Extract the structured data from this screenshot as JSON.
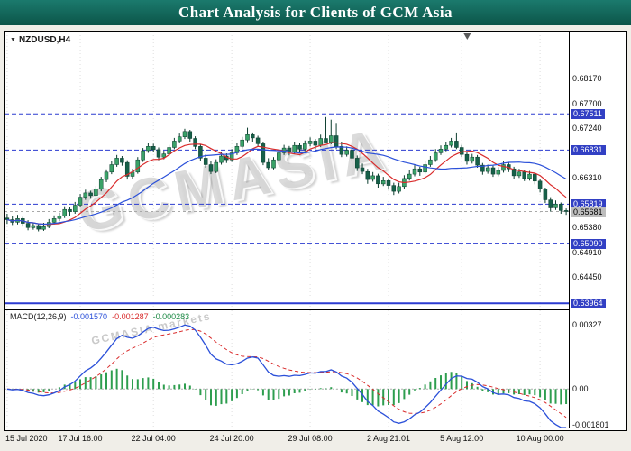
{
  "window": {
    "title": "Chart Analysis for Clients of GCM Asia"
  },
  "chart": {
    "symbol_label": "NZDUSD,H4",
    "watermark_main": "GCMASIA",
    "watermark_sub": "GCMASIA markets"
  },
  "macd_panel": {
    "label": "MACD(12,26,9)",
    "macd_value": "-0.001570",
    "signal_value": "-0.001287",
    "hist_value": "-0.000283"
  },
  "chart_data": {
    "type": "candlestick",
    "symbol": "NZDUSD",
    "timeframe": "H4",
    "title": "Chart Analysis for Clients of GCM Asia",
    "current_price": 0.65681,
    "shift_marker": 0.82,
    "price_axis": {
      "max": 0.6905,
      "min": 0.6385,
      "labels": [
        {
          "v": 0.6817,
          "text": "0.68170",
          "style": "plain"
        },
        {
          "v": 0.677,
          "text": "0.67700",
          "style": "plain"
        },
        {
          "v": 0.67511,
          "text": "0.67511",
          "style": "badge"
        },
        {
          "v": 0.6724,
          "text": "0.67240",
          "style": "plain"
        },
        {
          "v": 0.66831,
          "text": "0.66831",
          "style": "badge"
        },
        {
          "v": 0.6631,
          "text": "0.66310",
          "style": "plain"
        },
        {
          "v": 0.65819,
          "text": "0.65819",
          "style": "badge"
        },
        {
          "v": 0.6538,
          "text": "0.65380",
          "style": "plain"
        },
        {
          "v": 0.6509,
          "text": "0.65090",
          "style": "badge"
        },
        {
          "v": 0.6491,
          "text": "0.64910",
          "style": "plain"
        },
        {
          "v": 0.6445,
          "text": "0.64450",
          "style": "plain"
        },
        {
          "v": 0.63964,
          "text": "0.63964",
          "style": "badge"
        },
        {
          "v": 0.65681,
          "text": "0.65681",
          "style": "current"
        }
      ]
    },
    "levels": [
      {
        "v": 0.67511,
        "style": "dashed"
      },
      {
        "v": 0.66831,
        "style": "dashed"
      },
      {
        "v": 0.65819,
        "style": "dashed"
      },
      {
        "v": 0.6509,
        "style": "dashed"
      },
      {
        "v": 0.63964,
        "style": "solid"
      }
    ],
    "time_labels": [
      {
        "i": 0,
        "text": "15 Jul 2020"
      },
      {
        "i": 14,
        "text": "17 Jul 16:00"
      },
      {
        "i": 28,
        "text": "22 Jul 04:00"
      },
      {
        "i": 43,
        "text": "24 Jul 20:00"
      },
      {
        "i": 58,
        "text": "29 Jul 08:00"
      },
      {
        "i": 73,
        "text": "2 Aug 21:01"
      },
      {
        "i": 87,
        "text": "5 Aug 12:00"
      },
      {
        "i": 102,
        "text": "10 Aug 00:00"
      }
    ],
    "candles_ohlc": [
      [
        0.6556,
        0.6564,
        0.6545,
        0.6553
      ],
      [
        0.6553,
        0.656,
        0.6543,
        0.6548
      ],
      [
        0.6548,
        0.6562,
        0.6544,
        0.6555
      ],
      [
        0.6555,
        0.6558,
        0.654,
        0.6546
      ],
      [
        0.6546,
        0.6552,
        0.6533,
        0.6538
      ],
      [
        0.6538,
        0.6548,
        0.6534,
        0.6542
      ],
      [
        0.6542,
        0.6545,
        0.6531,
        0.6535
      ],
      [
        0.6535,
        0.6547,
        0.6532,
        0.654
      ],
      [
        0.654,
        0.6554,
        0.6537,
        0.6548
      ],
      [
        0.6548,
        0.6561,
        0.6544,
        0.6555
      ],
      [
        0.6555,
        0.6566,
        0.655,
        0.656
      ],
      [
        0.656,
        0.6578,
        0.6556,
        0.6572
      ],
      [
        0.6572,
        0.6576,
        0.656,
        0.6568
      ],
      [
        0.6568,
        0.6586,
        0.6564,
        0.658
      ],
      [
        0.658,
        0.6601,
        0.6576,
        0.6595
      ],
      [
        0.6595,
        0.6609,
        0.659,
        0.6603
      ],
      [
        0.6603,
        0.6607,
        0.6592,
        0.6598
      ],
      [
        0.6598,
        0.6616,
        0.6595,
        0.661
      ],
      [
        0.661,
        0.6633,
        0.6606,
        0.6628
      ],
      [
        0.6628,
        0.6647,
        0.6623,
        0.6642
      ],
      [
        0.6642,
        0.6662,
        0.6638,
        0.6656
      ],
      [
        0.6656,
        0.6674,
        0.6652,
        0.6668
      ],
      [
        0.6668,
        0.6672,
        0.6654,
        0.666
      ],
      [
        0.666,
        0.6664,
        0.6628,
        0.6634
      ],
      [
        0.6634,
        0.6648,
        0.6629,
        0.6642
      ],
      [
        0.6642,
        0.667,
        0.6639,
        0.6665
      ],
      [
        0.6665,
        0.6687,
        0.6661,
        0.6682
      ],
      [
        0.6682,
        0.6696,
        0.6678,
        0.669
      ],
      [
        0.669,
        0.6695,
        0.6679,
        0.6684
      ],
      [
        0.6684,
        0.6688,
        0.6664,
        0.667
      ],
      [
        0.667,
        0.6682,
        0.6666,
        0.6676
      ],
      [
        0.6676,
        0.6693,
        0.6672,
        0.6688
      ],
      [
        0.6688,
        0.6706,
        0.6685,
        0.67
      ],
      [
        0.67,
        0.6714,
        0.6696,
        0.6708
      ],
      [
        0.6708,
        0.6723,
        0.6704,
        0.6718
      ],
      [
        0.6718,
        0.6721,
        0.6699,
        0.6705
      ],
      [
        0.6705,
        0.6709,
        0.6685,
        0.669
      ],
      [
        0.669,
        0.6694,
        0.6663,
        0.6668
      ],
      [
        0.6668,
        0.6675,
        0.665,
        0.6656
      ],
      [
        0.6656,
        0.6662,
        0.6638,
        0.6643
      ],
      [
        0.6643,
        0.6666,
        0.664,
        0.666
      ],
      [
        0.666,
        0.6679,
        0.6656,
        0.6672
      ],
      [
        0.6672,
        0.6677,
        0.6659,
        0.6665
      ],
      [
        0.6665,
        0.6685,
        0.6661,
        0.6678
      ],
      [
        0.6678,
        0.6697,
        0.6674,
        0.669
      ],
      [
        0.669,
        0.6708,
        0.6686,
        0.6702
      ],
      [
        0.6702,
        0.6725,
        0.6698,
        0.6712
      ],
      [
        0.6712,
        0.6716,
        0.6699,
        0.6706
      ],
      [
        0.6706,
        0.671,
        0.6689,
        0.6695
      ],
      [
        0.6695,
        0.6699,
        0.6655,
        0.666
      ],
      [
        0.666,
        0.6668,
        0.6645,
        0.665
      ],
      [
        0.665,
        0.667,
        0.6647,
        0.6665
      ],
      [
        0.6665,
        0.6684,
        0.6662,
        0.6678
      ],
      [
        0.6678,
        0.6693,
        0.6674,
        0.6687
      ],
      [
        0.6687,
        0.6691,
        0.6673,
        0.668
      ],
      [
        0.668,
        0.6699,
        0.6676,
        0.6692
      ],
      [
        0.6692,
        0.6696,
        0.6678,
        0.6685
      ],
      [
        0.6685,
        0.6701,
        0.6681,
        0.6695
      ],
      [
        0.6695,
        0.6707,
        0.669,
        0.67
      ],
      [
        0.67,
        0.6704,
        0.6685,
        0.6692
      ],
      [
        0.6692,
        0.6712,
        0.6689,
        0.6705
      ],
      [
        0.6705,
        0.6745,
        0.6701,
        0.6698
      ],
      [
        0.6698,
        0.674,
        0.6694,
        0.671
      ],
      [
        0.671,
        0.6734,
        0.6685,
        0.669
      ],
      [
        0.669,
        0.6699,
        0.667,
        0.6675
      ],
      [
        0.6675,
        0.669,
        0.6671,
        0.6683
      ],
      [
        0.6683,
        0.6687,
        0.6662,
        0.6668
      ],
      [
        0.6668,
        0.6673,
        0.6644,
        0.665
      ],
      [
        0.665,
        0.6658,
        0.6638,
        0.6643
      ],
      [
        0.6643,
        0.6648,
        0.662,
        0.6628
      ],
      [
        0.6628,
        0.6642,
        0.6624,
        0.6635
      ],
      [
        0.6635,
        0.6639,
        0.6613,
        0.662
      ],
      [
        0.662,
        0.6633,
        0.6616,
        0.6626
      ],
      [
        0.6626,
        0.663,
        0.6609,
        0.6617
      ],
      [
        0.6617,
        0.6622,
        0.6599,
        0.6606
      ],
      [
        0.6606,
        0.6622,
        0.6602,
        0.6615
      ],
      [
        0.6615,
        0.6636,
        0.6611,
        0.663
      ],
      [
        0.663,
        0.6645,
        0.6626,
        0.6638
      ],
      [
        0.6638,
        0.6655,
        0.6634,
        0.6648
      ],
      [
        0.6648,
        0.6652,
        0.6635,
        0.6642
      ],
      [
        0.6642,
        0.6663,
        0.6639,
        0.6656
      ],
      [
        0.6656,
        0.6672,
        0.6652,
        0.6665
      ],
      [
        0.6665,
        0.6685,
        0.6661,
        0.6678
      ],
      [
        0.6678,
        0.6692,
        0.6674,
        0.6685
      ],
      [
        0.6685,
        0.6699,
        0.6681,
        0.6692
      ],
      [
        0.6692,
        0.6706,
        0.6688,
        0.67
      ],
      [
        0.67,
        0.6716,
        0.6685,
        0.6688
      ],
      [
        0.6688,
        0.6693,
        0.667,
        0.6675
      ],
      [
        0.6675,
        0.6679,
        0.6656,
        0.6662
      ],
      [
        0.6662,
        0.6676,
        0.6658,
        0.667
      ],
      [
        0.667,
        0.6674,
        0.665,
        0.6655
      ],
      [
        0.6655,
        0.6659,
        0.6637,
        0.6643
      ],
      [
        0.6643,
        0.6656,
        0.6639,
        0.665
      ],
      [
        0.665,
        0.6654,
        0.6633,
        0.6638
      ],
      [
        0.6638,
        0.6651,
        0.6634,
        0.6645
      ],
      [
        0.6645,
        0.6662,
        0.6641,
        0.6656
      ],
      [
        0.6656,
        0.666,
        0.6642,
        0.6648
      ],
      [
        0.6648,
        0.6652,
        0.6629,
        0.6635
      ],
      [
        0.6635,
        0.6648,
        0.6631,
        0.6642
      ],
      [
        0.6642,
        0.6646,
        0.6625,
        0.663
      ],
      [
        0.663,
        0.6644,
        0.6626,
        0.6638
      ],
      [
        0.6638,
        0.6641,
        0.6619,
        0.6625
      ],
      [
        0.6625,
        0.6629,
        0.6604,
        0.661
      ],
      [
        0.661,
        0.6613,
        0.6584,
        0.659
      ],
      [
        0.659,
        0.6595,
        0.6568,
        0.6575
      ],
      [
        0.6575,
        0.6589,
        0.6571,
        0.6582
      ],
      [
        0.6582,
        0.6585,
        0.6564,
        0.657
      ],
      [
        0.657,
        0.6574,
        0.6562,
        0.65681
      ]
    ],
    "moving_averages": [
      {
        "name": "ma-fast",
        "period": 8,
        "color": "#d92b2b"
      },
      {
        "name": "ma-slow",
        "period": 21,
        "color": "#2b50d9"
      }
    ],
    "macd": {
      "fast": 12,
      "slow": 26,
      "signal": 9,
      "values_text": [
        "-0.001570",
        "-0.001287",
        "-0.000283"
      ],
      "axis": {
        "max": 0.004,
        "min": -0.002,
        "labels": [
          {
            "v": 0.00327,
            "text": "0.00327"
          },
          {
            "v": 0,
            "text": "0.00"
          },
          {
            "v": -0.001801,
            "text": "-0.001801"
          }
        ]
      }
    },
    "colors": {
      "bull": "#3aa268",
      "bear": "#166049",
      "wick": "#0b3d2e",
      "grid": "#dedede",
      "level": "#2b3bd0",
      "current_line": "#a8a8a8",
      "macd_line": "#2b50d9",
      "signal_line": "#d92b2b",
      "hist": "#2e9e4f",
      "zero_line": "#b0b0b0",
      "marker": "#5a5a5a"
    }
  }
}
